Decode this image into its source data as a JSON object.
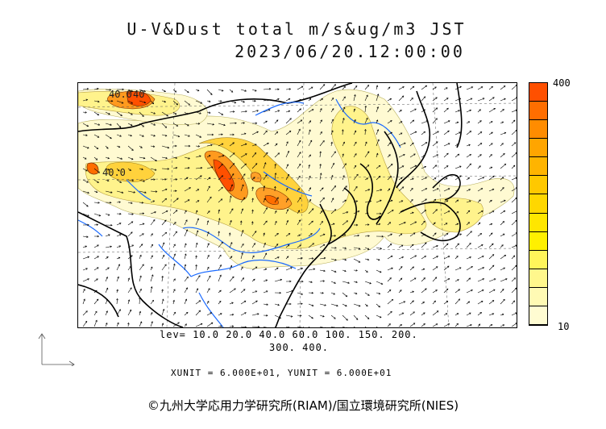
{
  "title": {
    "line1": "U-V&Dust total m/s&ug/m3 JST",
    "line2": "2023/06/20.12:00:00"
  },
  "colorbar": {
    "max_label": "400",
    "min_label": "10",
    "colors": [
      "#ff5000",
      "#ff6e00",
      "#ff8c00",
      "#ffa500",
      "#ffb400",
      "#ffc800",
      "#ffd700",
      "#ffe600",
      "#fff000",
      "#fff55a",
      "#fff78c",
      "#fffab4",
      "#fffcd2"
    ]
  },
  "levels": {
    "line1": "lev= 10.0 20.0 40.0 60.0 100. 150. 200.",
    "line2": "300. 400."
  },
  "units": "XUNIT = 6.000E+01, YUNIT = 6.000E+01",
  "map_labels": {
    "contour_label_1": "40.0",
    "contour_label_2": "40.0",
    "contour_label_3": "40"
  },
  "copyright": "©九州大学応用力学研究所(RIAM)/国立環境研究所(NIES)",
  "icons": {
    "reference_vector": "reference-vector-icon"
  }
}
